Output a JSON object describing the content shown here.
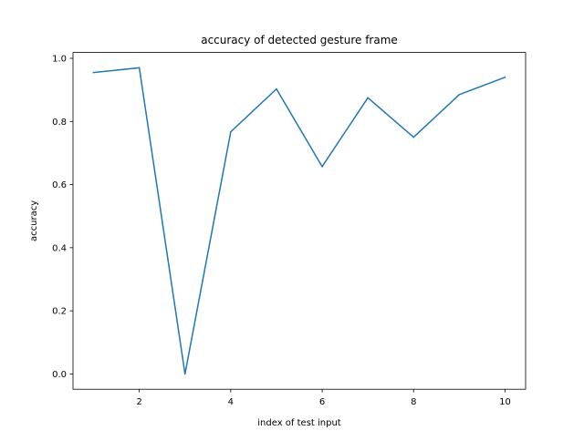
{
  "chart_data": {
    "type": "line",
    "title": "accuracy of detected gesture frame",
    "xlabel": "index of test input",
    "ylabel": "accuracy",
    "x": [
      1,
      2,
      3,
      4,
      5,
      6,
      7,
      8,
      9,
      10
    ],
    "series": [
      {
        "values": [
          0.955,
          0.97,
          0.0,
          0.767,
          0.903,
          0.657,
          0.875,
          0.75,
          0.885,
          0.94
        ],
        "color": "#1f77b4"
      }
    ],
    "xlim": [
      0.55,
      10.45
    ],
    "ylim": [
      -0.0485,
      1.0185
    ],
    "xticks": [
      2,
      4,
      6,
      8,
      10
    ],
    "xtick_labels": [
      "2",
      "4",
      "6",
      "8",
      "10"
    ],
    "yticks": [
      0.0,
      0.2,
      0.4,
      0.6,
      0.8,
      1.0
    ],
    "ytick_labels": [
      "0.0",
      "0.2",
      "0.4",
      "0.6",
      "0.8",
      "1.0"
    ],
    "grid": false,
    "legend": "none"
  }
}
